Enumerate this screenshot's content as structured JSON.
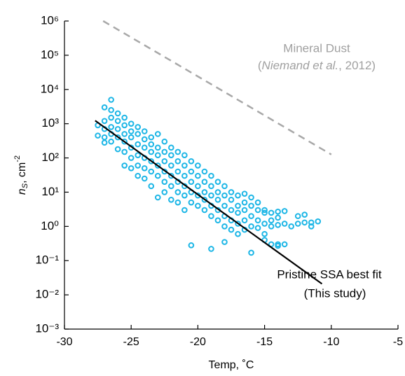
{
  "chart_data": {
    "type": "scatter",
    "xlabel": "Temp, ˚C",
    "ylabel": {
      "main": "n",
      "sub": "S",
      "unit": ", cm",
      "sup": "-2"
    },
    "xlim": [
      -30,
      -5
    ],
    "xticks": [
      -30,
      -25,
      -20,
      -15,
      -10,
      -5
    ],
    "ylim": [
      0.001,
      1000000
    ],
    "yscale": "log",
    "yticks": [
      {
        "value": 0.001,
        "label": "10⁻³"
      },
      {
        "value": 0.01,
        "label": "10⁻²"
      },
      {
        "value": 0.1,
        "label": "10⁻¹"
      },
      {
        "value": 1,
        "label": "10⁰"
      },
      {
        "value": 10,
        "label": "10¹"
      },
      {
        "value": 100,
        "label": "10²"
      },
      {
        "value": 1000,
        "label": "10³"
      },
      {
        "value": 10000,
        "label": "10⁴"
      },
      {
        "value": 100000,
        "label": "10⁵"
      },
      {
        "value": 1000000,
        "label": "10⁶"
      }
    ],
    "grid": false,
    "annotations": [
      {
        "text": "Mineral Dust",
        "color": "#a0a0a0"
      },
      {
        "parts": [
          "(",
          "Niemand et al.",
          ", 2012)"
        ],
        "color": "#a0a0a0"
      },
      {
        "text": "Pristine SSA best fit",
        "color": "#000000"
      },
      {
        "text": "(This study)",
        "color": "#000000"
      }
    ],
    "series": [
      {
        "type": "scatter",
        "color": "#1cb6e6",
        "x": [
          -27.5,
          -27.5,
          -27,
          -27,
          -27,
          -27,
          -27,
          -26.5,
          -26.5,
          -26.5,
          -26.5,
          -26.5,
          -26.5,
          -26,
          -26,
          -26,
          -26,
          -26,
          -25.5,
          -25.5,
          -25.5,
          -25.5,
          -25.5,
          -25.5,
          -25,
          -25,
          -25,
          -25,
          -25,
          -25,
          -24.5,
          -24.5,
          -24.5,
          -24.5,
          -24.5,
          -24.5,
          -24,
          -24,
          -24,
          -24,
          -24,
          -24,
          -23.5,
          -23.5,
          -23.5,
          -23.5,
          -23.5,
          -23.5,
          -23,
          -23,
          -23,
          -23,
          -23,
          -23,
          -22.5,
          -22.5,
          -22.5,
          -22.5,
          -22.5,
          -22.5,
          -22,
          -22,
          -22,
          -22,
          -22,
          -22,
          -21.5,
          -21.5,
          -21.5,
          -21.5,
          -21.5,
          -21.5,
          -21,
          -21,
          -21,
          -21,
          -21,
          -21,
          -20.5,
          -20.5,
          -20.5,
          -20.5,
          -20.5,
          -20.5,
          -20,
          -20,
          -20,
          -20,
          -20,
          -19.5,
          -19.5,
          -19.5,
          -19.5,
          -19.5,
          -19,
          -19,
          -19,
          -19,
          -19,
          -19,
          -18.5,
          -18.5,
          -18.5,
          -18.5,
          -18.5,
          -18,
          -18,
          -18,
          -18,
          -18,
          -18,
          -17.5,
          -17.5,
          -17.5,
          -17.5,
          -17.5,
          -17,
          -17,
          -17,
          -17,
          -17,
          -16.5,
          -16.5,
          -16.5,
          -16.5,
          -16.5,
          -16,
          -16,
          -16,
          -16,
          -16,
          -15.5,
          -15.5,
          -15.5,
          -15.5,
          -15,
          -15,
          -15,
          -15,
          -15,
          -14.5,
          -14.5,
          -14.5,
          -14.5,
          -14,
          -14,
          -14,
          -14,
          -14,
          -13.5,
          -13.5,
          -13.5,
          -13,
          -12.5,
          -12.5,
          -12,
          -12,
          -11.5,
          -11.5,
          -11
        ],
        "values": [
          450,
          900,
          3000,
          1200,
          700,
          400,
          280,
          5000,
          2500,
          1500,
          800,
          500,
          300,
          2000,
          1200,
          700,
          400,
          180,
          1500,
          900,
          500,
          300,
          150,
          60,
          1000,
          600,
          400,
          200,
          100,
          50,
          800,
          500,
          250,
          120,
          60,
          30,
          600,
          350,
          200,
          100,
          50,
          25,
          400,
          250,
          150,
          80,
          40,
          15,
          500,
          200,
          120,
          60,
          30,
          7,
          300,
          150,
          80,
          40,
          20,
          10,
          200,
          120,
          60,
          30,
          15,
          6,
          150,
          80,
          40,
          20,
          10,
          5,
          120,
          60,
          30,
          15,
          8,
          3,
          80,
          40,
          20,
          10,
          5,
          0.28,
          60,
          30,
          15,
          8,
          4,
          40,
          20,
          10,
          6,
          3,
          30,
          15,
          8,
          4,
          2,
          0.22,
          20,
          10,
          6,
          3,
          1.5,
          15,
          8,
          4,
          2,
          1,
          0.35,
          10,
          6,
          3,
          1.5,
          0.8,
          8,
          4,
          2.5,
          1.2,
          0.6,
          9,
          5,
          3,
          1.5,
          0.8,
          7,
          4,
          2,
          1,
          0.17,
          5,
          3,
          1.5,
          0.9,
          3,
          2.5,
          1.2,
          0.6,
          0.4,
          2.5,
          1.5,
          1,
          0.3,
          2.7,
          1.8,
          1.1,
          0.3,
          0.27,
          2.8,
          1.2,
          0.3,
          1,
          2,
          1.2,
          2.2,
          1.3,
          1.3,
          1,
          1.4
        ]
      },
      {
        "type": "line",
        "color": "#a8a8a8",
        "dash": true,
        "x": [
          -27.1,
          -10
        ],
        "values": [
          1000000,
          126
        ]
      },
      {
        "type": "line",
        "color": "#000000",
        "dash": false,
        "x": [
          -27.7,
          -10.7
        ],
        "values": [
          1230,
          0.021
        ]
      }
    ]
  }
}
